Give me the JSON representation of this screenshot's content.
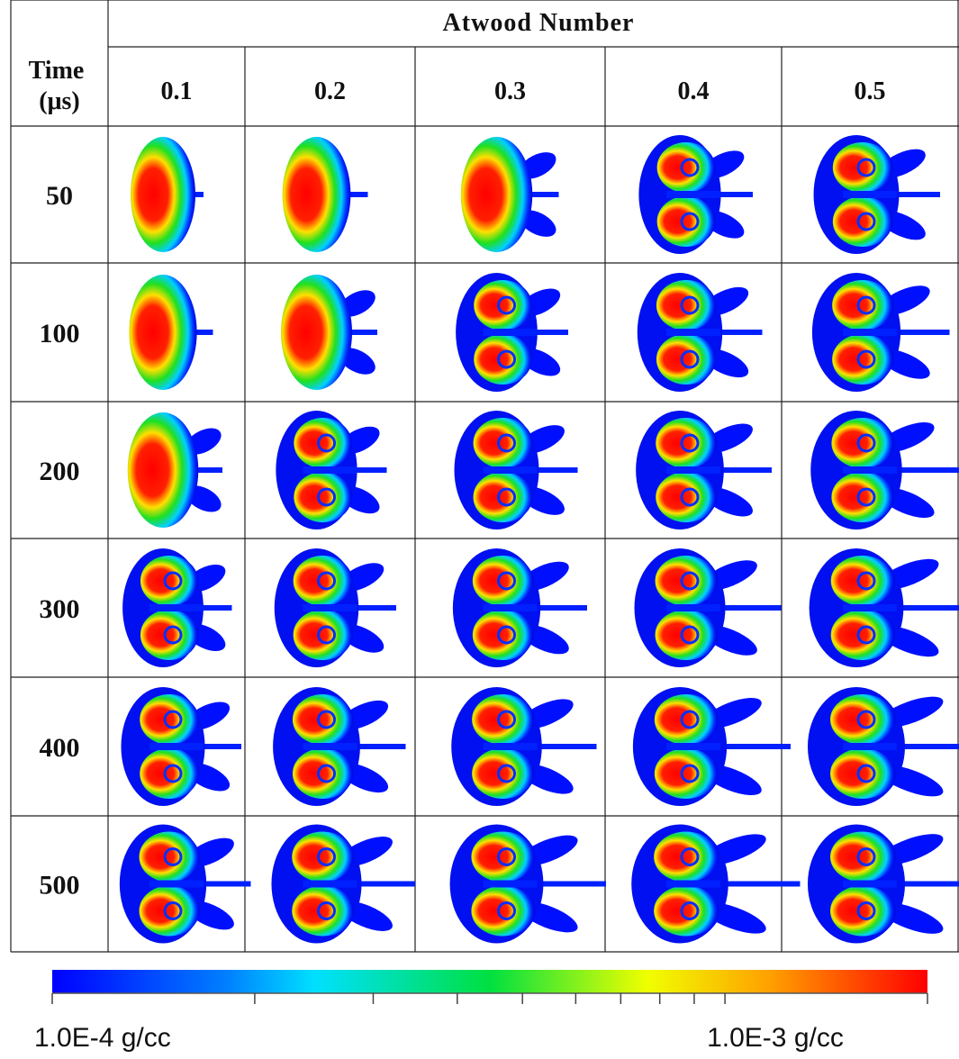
{
  "header": {
    "title": "Atwood Number",
    "row_label": "Time (μs)"
  },
  "columns": [
    "0.1",
    "0.2",
    "0.3",
    "0.4",
    "0.5"
  ],
  "rows": [
    "50",
    "100",
    "200",
    "300",
    "400",
    "500"
  ],
  "colorbar": {
    "scale": "log",
    "lim": [
      0.0001,
      0.002
    ],
    "ticks": [
      0.0001,
      0.0002,
      0.0003,
      0.0004,
      0.0005,
      0.0006,
      0.0007,
      0.0008,
      0.0009,
      0.001,
      0.002
    ],
    "labels": [
      {
        "value": 0.0001,
        "label": "1.0E-4 g/cc"
      },
      {
        "value": 0.001,
        "label": "1.0E-3 g/cc"
      }
    ]
  }
}
